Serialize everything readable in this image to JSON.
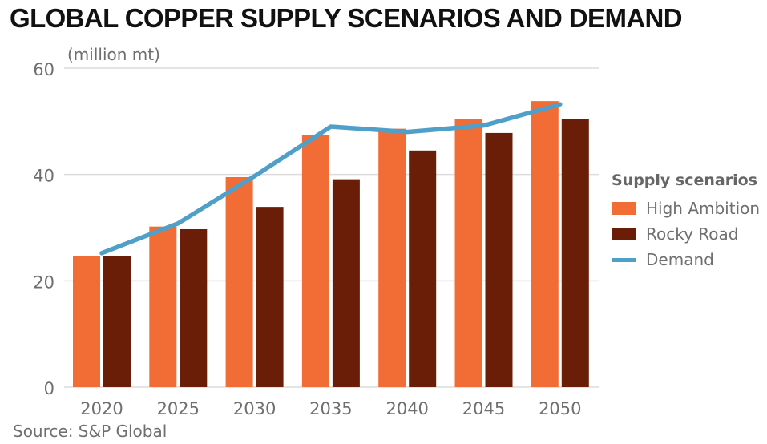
{
  "chart_data": {
    "type": "bar",
    "title": "GLOBAL COPPER SUPPLY SCENARIOS AND DEMAND",
    "unit_label": "(million mt)",
    "xlabel": "",
    "ylabel": "(million mt)",
    "ylim": [
      0,
      60
    ],
    "yticks": [
      0,
      20,
      40,
      60
    ],
    "grid": true,
    "categories": [
      "2020",
      "2025",
      "2030",
      "2035",
      "2040",
      "2045",
      "2050"
    ],
    "series": [
      {
        "name": "High Ambition",
        "type": "bar",
        "color": "#f26d35",
        "values": [
          24.6,
          30.2,
          39.5,
          47.4,
          48.6,
          50.5,
          53.8
        ]
      },
      {
        "name": "Rocky Road",
        "type": "bar",
        "color": "#6b1e07",
        "values": [
          24.6,
          29.7,
          33.9,
          39.1,
          44.5,
          47.8,
          50.5
        ]
      },
      {
        "name": "Demand",
        "type": "line",
        "color": "#4f9fc9",
        "values": [
          25.2,
          30.8,
          39.7,
          49.0,
          48.0,
          49.2,
          53.2
        ]
      }
    ],
    "legend": {
      "title": "Supply scenarios",
      "position": "right"
    },
    "source": "Source: S&P Global"
  }
}
